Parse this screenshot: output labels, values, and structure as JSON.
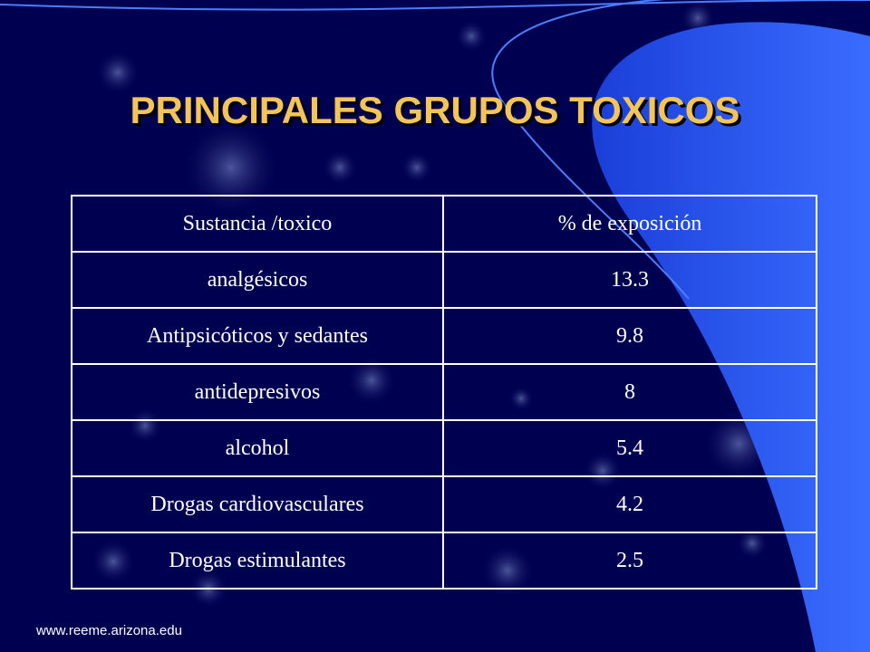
{
  "slide": {
    "title": "PRINCIPALES GRUPOS TOXICOS",
    "footer": "www.reeme.arizona.edu",
    "colors": {
      "background": "#000050",
      "title": "#f2c45a",
      "accent_swoosh": "#2f5cf0",
      "table_text": "#ffffff"
    }
  },
  "table": {
    "header": [
      "Sustancia /toxico",
      "% de exposición"
    ],
    "rows": [
      [
        "analgésicos",
        "13.3"
      ],
      [
        "Antipsicóticos y sedantes",
        "9.8"
      ],
      [
        "antidepresivos",
        "8"
      ],
      [
        "alcohol",
        "5.4"
      ],
      [
        "Drogas cardiovasculares",
        "4.2"
      ],
      [
        "Drogas estimulantes",
        "2.5"
      ]
    ]
  }
}
